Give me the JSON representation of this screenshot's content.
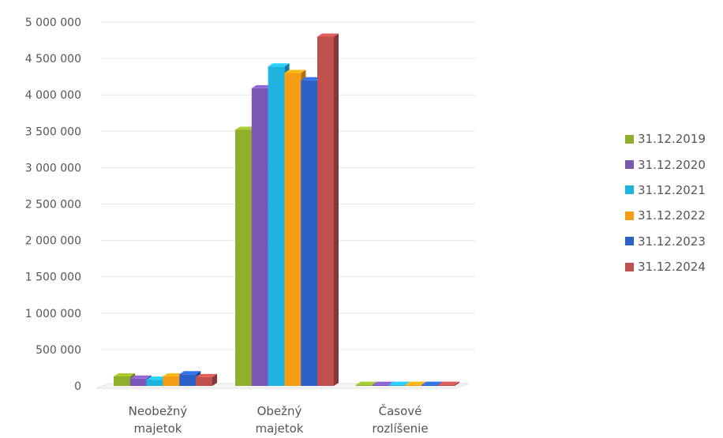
{
  "chart_data": {
    "type": "bar",
    "categories": [
      "Neobežný majetok",
      "Obežný majetok",
      "Časové rozlíšenie"
    ],
    "category_lines": [
      [
        "Neobežný",
        "majetok"
      ],
      [
        "Obežný",
        "majetok"
      ],
      [
        "Časové",
        "rozlíšenie"
      ]
    ],
    "series": [
      {
        "name": "31.12.2019",
        "color": "#8fae2c",
        "values": [
          130000,
          3520000,
          15000
        ]
      },
      {
        "name": "31.12.2020",
        "color": "#7b57b5",
        "values": [
          100000,
          4090000,
          15000
        ]
      },
      {
        "name": "31.12.2021",
        "color": "#1fb3e0",
        "values": [
          85000,
          4390000,
          15000
        ]
      },
      {
        "name": "31.12.2022",
        "color": "#f59d14",
        "values": [
          130000,
          4300000,
          15000
        ]
      },
      {
        "name": "31.12.2023",
        "color": "#2a62c7",
        "values": [
          160000,
          4200000,
          15000
        ]
      },
      {
        "name": "31.12.2024",
        "color": "#c0504d",
        "values": [
          120000,
          4800000,
          15000
        ]
      }
    ],
    "ylim": [
      0,
      5000000
    ],
    "yticks": [
      0,
      500000,
      1000000,
      1500000,
      2000000,
      2500000,
      3000000,
      3500000,
      4000000,
      4500000,
      5000000
    ],
    "ytick_labels": [
      "0",
      "500 000",
      "1 000 000",
      "1 500 000",
      "2 000 000",
      "2 500 000",
      "3 000 000",
      "3 500 000",
      "4 000 000",
      "4 500 000",
      "5 000 000"
    ],
    "title": "",
    "xlabel": "",
    "ylabel": "",
    "grid": true,
    "legend_position": "right"
  }
}
